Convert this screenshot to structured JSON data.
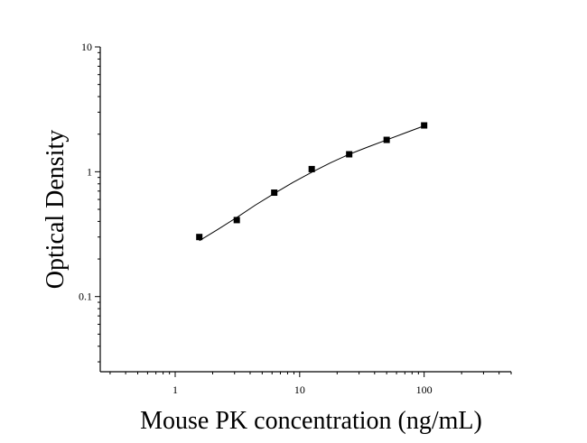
{
  "chart_data": {
    "type": "scatter",
    "title": "",
    "xlabel": "Mouse PK concentration (ng/mL)",
    "ylabel": "Optical Density",
    "x_scale": "log",
    "y_scale": "log",
    "xlim": [
      0.25,
      500
    ],
    "ylim": [
      0.025,
      10
    ],
    "x_ticks": [
      1,
      10,
      100
    ],
    "x_tick_labels": [
      "1",
      "10",
      "100"
    ],
    "y_ticks": [
      0.1,
      1,
      10
    ],
    "y_tick_labels": [
      "0.1",
      "1",
      "10"
    ],
    "grid": false,
    "legend": false,
    "series": [
      {
        "x": [
          1.5625,
          3.125,
          6.25,
          12.5,
          25,
          50,
          100
        ],
        "y": [
          0.3,
          0.41,
          0.68,
          1.05,
          1.38,
          1.8,
          2.35
        ],
        "marker": "square",
        "color": "#000000"
      }
    ],
    "fit": {
      "type": "line",
      "color": "#000000",
      "x": [
        1.5625,
        2.2,
        3.125,
        4.4,
        6.25,
        8.8,
        12.5,
        17.7,
        25,
        35.4,
        50,
        70.7,
        100
      ],
      "y": [
        0.28,
        0.345,
        0.43,
        0.54,
        0.67,
        0.82,
        0.99,
        1.18,
        1.38,
        1.58,
        1.8,
        2.05,
        2.33
      ]
    }
  }
}
